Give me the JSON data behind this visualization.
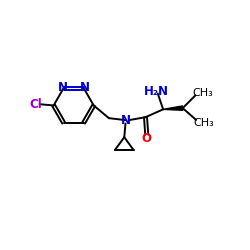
{
  "bg_color": "#ffffff",
  "bond_color": "#000000",
  "N_color": "#0000cd",
  "Cl_color": "#9900cc",
  "O_color": "#ff0000",
  "line_width": 1.4,
  "font_size": 8.5,
  "figsize": [
    2.5,
    2.5
  ],
  "dpi": 100,
  "xlim": [
    0,
    10
  ],
  "ylim": [
    2,
    9
  ]
}
